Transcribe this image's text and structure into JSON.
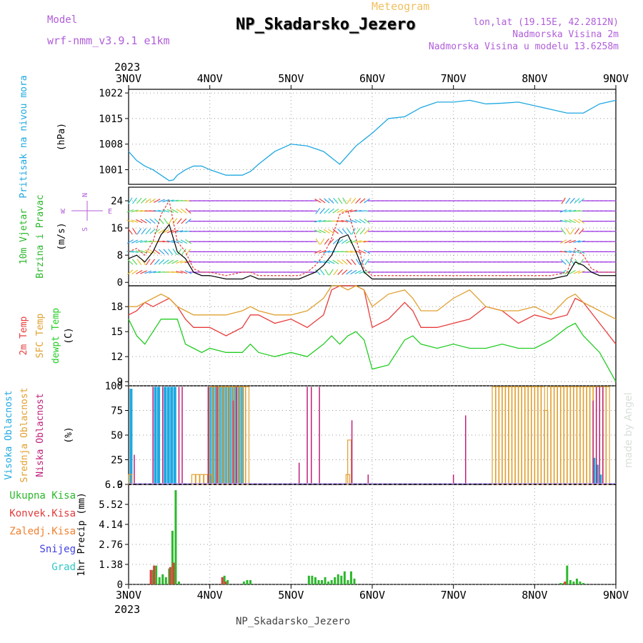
{
  "header": {
    "model_label": "Model",
    "model_name": "wrf-nmm_v3.9.1 e1km",
    "meteogram": "Meteogram",
    "title": "NP_Skadarsko_Jezero",
    "lonlat": "lon,lat (19.15E, 42.2812N)",
    "elevation": "Nadmorska Visina 2m",
    "elevation_model": "Nadmorska Visina u modelu 13.6258m"
  },
  "footer": {
    "station": "NP_Skadarsko_Jezero",
    "credit": "made by Angel"
  },
  "time_axis": {
    "year": "2023",
    "labels": [
      "3NOV",
      "4NOV",
      "5NOV",
      "6NOV",
      "7NOV",
      "8NOV",
      "9NOV"
    ]
  },
  "colors": {
    "pressure": "#1ea8e0",
    "wind_speed": "#000000",
    "gust": "#e03c3c",
    "temp2m": "#e83c3c",
    "sfc_temp": "#e0a030",
    "dewpoint": "#22cc22",
    "high_cloud": "#1ea8e0",
    "mid_cloud": "#e0a030",
    "low_cloud": "#c0207a",
    "total_precip": "#2cb82c",
    "conv_precip": "#e03c3c",
    "frozen_precip": "#f08030",
    "snow": "#4040e0",
    "graupel": "#30c8c8",
    "wind_arrow": "#9a30e0",
    "panel_labels_purple": "#b05ed9"
  },
  "chart_data": [
    {
      "type": "line",
      "ylabel_lines": [
        "Pritisak na nivou mora",
        "(hPa)"
      ],
      "ylim": [
        997,
        1023
      ],
      "yticks": [
        "1001",
        "1008",
        "1015",
        "1022"
      ],
      "grid": true,
      "series": [
        {
          "name": "Pritisak na nivou mora",
          "x": [
            0,
            0.1,
            0.2,
            0.3,
            0.4,
            0.5,
            0.55,
            0.6,
            0.7,
            0.8,
            0.9,
            1.0,
            1.2,
            1.4,
            1.5,
            1.6,
            1.8,
            2.0,
            2.2,
            2.4,
            2.6,
            2.8,
            3.0,
            3.2,
            3.4,
            3.6,
            3.8,
            4.0,
            4.2,
            4.4,
            4.6,
            4.8,
            5.0,
            5.2,
            5.4,
            5.6,
            5.8,
            6.0
          ],
          "values": [
            1006,
            1003.5,
            1002,
            1001,
            999.5,
            998,
            998.2,
            999.5,
            1001,
            1002,
            1002,
            1001,
            999.5,
            999.5,
            1000.5,
            1002.5,
            1006,
            1008,
            1007.5,
            1006,
            1002.5,
            1007.5,
            1011,
            1015,
            1015.5,
            1018,
            1019.5,
            1019.5,
            1020,
            1019,
            1019.2,
            1019.5,
            1018.5,
            1017.5,
            1016.5,
            1016.5,
            1019,
            1020
          ]
        }
      ]
    },
    {
      "type": "line",
      "ylabel_lines": [
        "10m Vjetar",
        "Brzina i Pravac",
        "(m/s)"
      ],
      "compass": [
        "N",
        "E",
        "W",
        "S"
      ],
      "ylim": [
        -1,
        28
      ],
      "yticks": [
        "0",
        "8",
        "16",
        "24"
      ],
      "grid": true,
      "series": [
        {
          "name": "Brzina",
          "x": [
            0,
            0.1,
            0.2,
            0.3,
            0.4,
            0.5,
            0.6,
            0.7,
            0.8,
            0.9,
            1.0,
            1.2,
            1.4,
            1.5,
            1.6,
            1.8,
            2.0,
            2.1,
            2.2,
            2.3,
            2.4,
            2.5,
            2.6,
            2.7,
            2.8,
            2.9,
            3.0,
            3.2,
            3.4,
            3.6,
            3.8,
            4.0,
            4.2,
            4.4,
            4.6,
            4.8,
            5.0,
            5.2,
            5.4,
            5.5,
            5.6,
            5.7,
            5.8,
            5.9,
            6.0
          ],
          "values": [
            7,
            8,
            6,
            9,
            14,
            17,
            9,
            7,
            3,
            2,
            2,
            1,
            1,
            2,
            1,
            1,
            1,
            1,
            2,
            3,
            5,
            8,
            13,
            14,
            9,
            3,
            1,
            1,
            1,
            1,
            1,
            1,
            1,
            1,
            1,
            1,
            1,
            1,
            2,
            6,
            5,
            3,
            2,
            2,
            2
          ]
        },
        {
          "name": "Udar",
          "x": [
            0,
            0.1,
            0.2,
            0.3,
            0.4,
            0.5,
            0.6,
            0.7,
            0.8,
            0.9,
            1.0,
            1.2,
            1.4,
            1.5,
            1.6,
            1.8,
            2.0,
            2.1,
            2.2,
            2.3,
            2.4,
            2.5,
            2.6,
            2.7,
            2.8,
            2.9,
            3.0,
            3.2,
            3.4,
            3.6,
            3.8,
            4.0,
            4.2,
            4.4,
            4.6,
            4.8,
            5.0,
            5.2,
            5.4,
            5.5,
            5.6,
            5.7,
            5.8,
            5.9,
            6.0
          ],
          "values": [
            9,
            10,
            8,
            12,
            20,
            24,
            12,
            9,
            4,
            3,
            3,
            2,
            3,
            3,
            2,
            2,
            2,
            2,
            3,
            5,
            8,
            13,
            20,
            21,
            13,
            4,
            2,
            2,
            2,
            2,
            2,
            2,
            2,
            2,
            2,
            2,
            2,
            2,
            3,
            10,
            8,
            4,
            3,
            3,
            3
          ]
        }
      ]
    },
    {
      "type": "line",
      "ylabel_lines": [
        "2m Temp",
        "SFC Temp",
        "dewpt Temp",
        "(C)"
      ],
      "ylim": [
        8.5,
        20.5
      ],
      "yticks": [
        "9",
        "12",
        "15",
        "18"
      ],
      "grid": true,
      "series": [
        {
          "name": "2m Temp",
          "x": [
            0,
            0.1,
            0.2,
            0.3,
            0.4,
            0.5,
            0.6,
            0.7,
            0.8,
            0.9,
            1.0,
            1.2,
            1.4,
            1.5,
            1.6,
            1.8,
            2.0,
            2.2,
            2.4,
            2.5,
            2.6,
            2.7,
            2.8,
            2.9,
            3.0,
            3.2,
            3.4,
            3.5,
            3.6,
            3.8,
            4.0,
            4.2,
            4.4,
            4.6,
            4.8,
            5.0,
            5.2,
            5.4,
            5.5,
            5.6,
            5.8,
            6.0
          ],
          "values": [
            17,
            17.5,
            18.5,
            18,
            18.5,
            19,
            18,
            16.5,
            15.5,
            15.5,
            15.5,
            14.5,
            15.5,
            17,
            17,
            16,
            16.5,
            15.5,
            17,
            20,
            20.5,
            20.5,
            20.5,
            20,
            15.5,
            16.5,
            18.5,
            17.5,
            15.5,
            15.5,
            16,
            16.5,
            18,
            17.5,
            16,
            17,
            16.5,
            17,
            19,
            18.5,
            16,
            13.5
          ]
        },
        {
          "name": "SFC Temp",
          "x": [
            0,
            0.1,
            0.2,
            0.3,
            0.4,
            0.5,
            0.6,
            0.7,
            0.8,
            0.9,
            1.0,
            1.2,
            1.4,
            1.5,
            1.6,
            1.8,
            2.0,
            2.2,
            2.4,
            2.5,
            2.6,
            2.7,
            2.8,
            2.9,
            3.0,
            3.2,
            3.4,
            3.5,
            3.6,
            3.8,
            4.0,
            4.2,
            4.4,
            4.6,
            4.8,
            5.0,
            5.2,
            5.4,
            5.5,
            5.6,
            5.8,
            6.0
          ],
          "values": [
            18,
            18,
            18.5,
            19,
            19.5,
            19,
            18,
            17.5,
            17,
            17,
            17,
            17,
            17.5,
            18,
            17.5,
            17,
            17,
            17.5,
            19,
            20.5,
            20.5,
            20,
            20.5,
            20,
            18,
            19.5,
            20,
            19,
            17.5,
            17.5,
            19,
            20,
            18,
            17.5,
            17.5,
            18,
            17,
            19,
            19.5,
            18.5,
            17.5,
            16.5
          ]
        },
        {
          "name": "dewpt Temp",
          "x": [
            0,
            0.1,
            0.2,
            0.3,
            0.4,
            0.5,
            0.6,
            0.7,
            0.8,
            0.9,
            1.0,
            1.2,
            1.4,
            1.5,
            1.6,
            1.8,
            2.0,
            2.2,
            2.4,
            2.5,
            2.6,
            2.7,
            2.8,
            2.9,
            3.0,
            3.2,
            3.4,
            3.5,
            3.6,
            3.8,
            4.0,
            4.2,
            4.4,
            4.6,
            4.8,
            5.0,
            5.2,
            5.4,
            5.5,
            5.6,
            5.8,
            6.0
          ],
          "values": [
            16.5,
            14.5,
            13.5,
            15,
            16.5,
            16.5,
            16.5,
            13.5,
            13,
            12.5,
            13,
            12.5,
            12.5,
            13.5,
            12.5,
            12,
            12.5,
            12,
            13.5,
            14.5,
            13.5,
            14.5,
            15,
            14,
            10.5,
            11,
            14,
            14.5,
            13.5,
            13,
            13.5,
            13,
            13,
            13.5,
            13,
            13,
            14,
            15.5,
            16,
            14.5,
            12.5,
            9
          ]
        }
      ]
    },
    {
      "type": "bar",
      "ylabel_lines": [
        "Visoka Oblacnost",
        "Srednja Oblacnost",
        "Niska Oblacnost",
        "(%)"
      ],
      "ylim": [
        0,
        100
      ],
      "yticks": [
        "0",
        "25",
        "50",
        "75",
        "100"
      ],
      "grid": true,
      "series": [
        {
          "name": "Visoka Oblacnost",
          "x": [
            0.03,
            0.33,
            0.37,
            0.45,
            0.49,
            0.53,
            0.57,
            1.0,
            1.04,
            1.08,
            1.12,
            1.16,
            1.2,
            1.24,
            1.28,
            1.32,
            1.36,
            1.4,
            5.73,
            5.77,
            5.81
          ],
          "values": [
            97,
            99,
            99,
            99,
            99,
            99,
            99,
            99,
            99,
            99,
            99,
            99,
            99,
            99,
            99,
            99,
            99,
            99,
            27,
            20,
            10
          ]
        },
        {
          "name": "Srednja Oblacnost",
          "x": [
            0.02,
            0.8,
            0.85,
            0.9,
            0.95,
            1.0,
            1.02,
            1.06,
            1.1,
            1.14,
            1.18,
            1.22,
            1.26,
            1.3,
            1.34,
            1.38,
            1.42,
            1.46,
            2.7,
            2.72,
            4.5,
            4.54,
            4.58,
            4.62,
            4.66,
            4.7,
            4.74,
            4.78,
            4.82,
            4.86,
            4.9,
            4.94,
            4.98,
            5.02,
            5.06,
            5.1,
            5.14,
            5.18,
            5.22,
            5.26,
            5.3,
            5.34,
            5.38,
            5.42,
            5.46,
            5.5,
            5.54,
            5.58,
            5.62,
            5.66,
            5.7,
            5.74,
            5.78,
            5.82,
            5.86,
            5.9
          ],
          "values": [
            10,
            10,
            10,
            10,
            10,
            10,
            99,
            99,
            99,
            99,
            99,
            99,
            99,
            99,
            99,
            99,
            99,
            99,
            10,
            45,
            99,
            99,
            99,
            99,
            99,
            99,
            99,
            99,
            99,
            99,
            99,
            99,
            99,
            99,
            99,
            99,
            75,
            99,
            99,
            99,
            99,
            99,
            99,
            99,
            99,
            99,
            99,
            99,
            99,
            99,
            99,
            99,
            99,
            99,
            99,
            99
          ]
        },
        {
          "name": "Niska Oblacnost",
          "x": [
            0.07,
            0.3,
            0.42,
            0.62,
            0.66,
            0.98,
            1.09,
            1.29,
            1.33,
            2.2,
            2.1,
            2.25,
            2.35,
            2.75,
            2.95,
            4.15,
            4.0,
            5.72,
            5.76,
            5.8,
            5.84
          ],
          "values": [
            30,
            99,
            99,
            99,
            99,
            99,
            99,
            85,
            99,
            99,
            22,
            99,
            99,
            65,
            10,
            70,
            10,
            85,
            99,
            99,
            99
          ]
        }
      ]
    },
    {
      "type": "bar",
      "ylabel_lines": [
        "1hr Precip (mm)"
      ],
      "legend": [
        "Ukupna Kisa",
        "Konvek.Kisa",
        "Zaledj.Kisa",
        "Snijeg",
        "Grad"
      ],
      "ylim": [
        0,
        6.9
      ],
      "yticks": [
        "0",
        "1.38",
        "2.76",
        "4.14",
        "5.52",
        "6.9"
      ],
      "grid": true,
      "series": [
        {
          "name": "Ukupna Kisa",
          "x": [
            0.3,
            0.34,
            0.38,
            0.42,
            0.46,
            0.5,
            0.54,
            0.58,
            0.62,
            1.18,
            1.22,
            1.42,
            1.46,
            1.5,
            2.22,
            2.26,
            2.3,
            2.34,
            2.38,
            2.42,
            2.46,
            2.5,
            2.54,
            2.58,
            2.62,
            2.66,
            2.7,
            2.74,
            2.78,
            5.32,
            5.36,
            5.4,
            5.44,
            5.48,
            5.52,
            5.56,
            5.6
          ],
          "values": [
            1.0,
            1.3,
            0.5,
            0.7,
            0.5,
            1.1,
            3.7,
            6.5,
            0.2,
            0.6,
            0.3,
            0.2,
            0.3,
            0.3,
            0.6,
            0.6,
            0.5,
            0.3,
            0.3,
            0.5,
            0.2,
            0.3,
            0.5,
            0.7,
            0.6,
            0.9,
            0.3,
            0.9,
            0.4,
            0.1,
            0.1,
            1.3,
            0.3,
            0.2,
            0.4,
            0.2,
            0.1
          ]
        },
        {
          "name": "Konvek.Kisa",
          "x": [
            0.3,
            0.34,
            0.54,
            0.58,
            1.18,
            1.22,
            5.4
          ],
          "values": [
            1.0,
            1.3,
            1.2,
            1.5,
            0.5,
            0.2,
            0.2
          ]
        }
      ]
    }
  ]
}
